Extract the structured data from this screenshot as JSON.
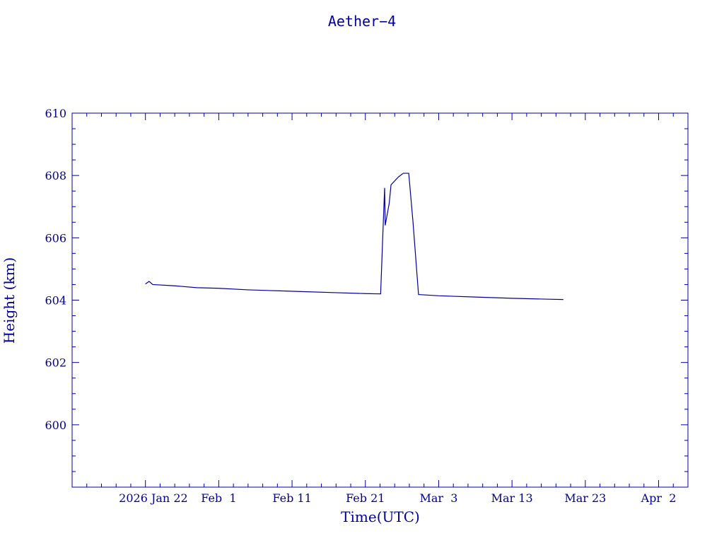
{
  "chart_data": {
    "type": "line",
    "title": "Aether−4",
    "xlabel": "Time(UTC)",
    "ylabel": "Height (km)",
    "x_unit": "days (UTC)",
    "y_unit": "km",
    "ylim": [
      598,
      610
    ],
    "y_ticks": [
      600,
      602,
      604,
      606,
      608,
      610
    ],
    "x_ticks": [
      {
        "label": "2026 Jan 22",
        "date": "2026-01-22"
      },
      {
        "label": "Feb  1",
        "date": "2026-02-01"
      },
      {
        "label": "Feb 11",
        "date": "2026-02-11"
      },
      {
        "label": "Feb 21",
        "date": "2026-02-21"
      },
      {
        "label": "Mar  3",
        "date": "2026-03-03"
      },
      {
        "label": "Mar 13",
        "date": "2026-03-13"
      },
      {
        "label": "Mar 23",
        "date": "2026-03-23"
      },
      {
        "label": "Apr  2",
        "date": "2026-04-02"
      }
    ],
    "xlim": [
      "2026-01-12",
      "2026-04-06"
    ],
    "grid": false,
    "series": [
      {
        "color": "#000099",
        "points": [
          [
            "2026-01-22",
            604.52
          ],
          [
            "2026-01-22T12:00",
            604.6
          ],
          [
            "2026-01-23",
            604.5
          ],
          [
            "2026-01-26",
            604.46
          ],
          [
            "2026-01-29",
            604.4
          ],
          [
            "2026-02-01",
            604.38
          ],
          [
            "2026-02-05",
            604.33
          ],
          [
            "2026-02-09",
            604.3
          ],
          [
            "2026-02-13",
            604.27
          ],
          [
            "2026-02-17",
            604.24
          ],
          [
            "2026-02-21",
            604.21
          ],
          [
            "2026-02-23T02:00",
            604.2
          ],
          [
            "2026-02-23T08:00",
            605.8
          ],
          [
            "2026-02-23T15:00",
            607.6
          ],
          [
            "2026-02-23T17:00",
            606.4
          ],
          [
            "2026-02-24T06:00",
            607.1
          ],
          [
            "2026-02-24T12:00",
            607.7
          ],
          [
            "2026-02-25T12:00",
            607.95
          ],
          [
            "2026-02-26T04:00",
            608.07
          ],
          [
            "2026-02-26T22:00",
            608.07
          ],
          [
            "2026-02-27T12:00",
            606.5
          ],
          [
            "2026-02-28T06:00",
            604.18
          ],
          [
            "2026-03-03",
            604.14
          ],
          [
            "2026-03-08",
            604.1
          ],
          [
            "2026-03-13",
            604.06
          ],
          [
            "2026-03-18",
            604.03
          ],
          [
            "2026-03-20",
            604.02
          ]
        ]
      }
    ]
  }
}
